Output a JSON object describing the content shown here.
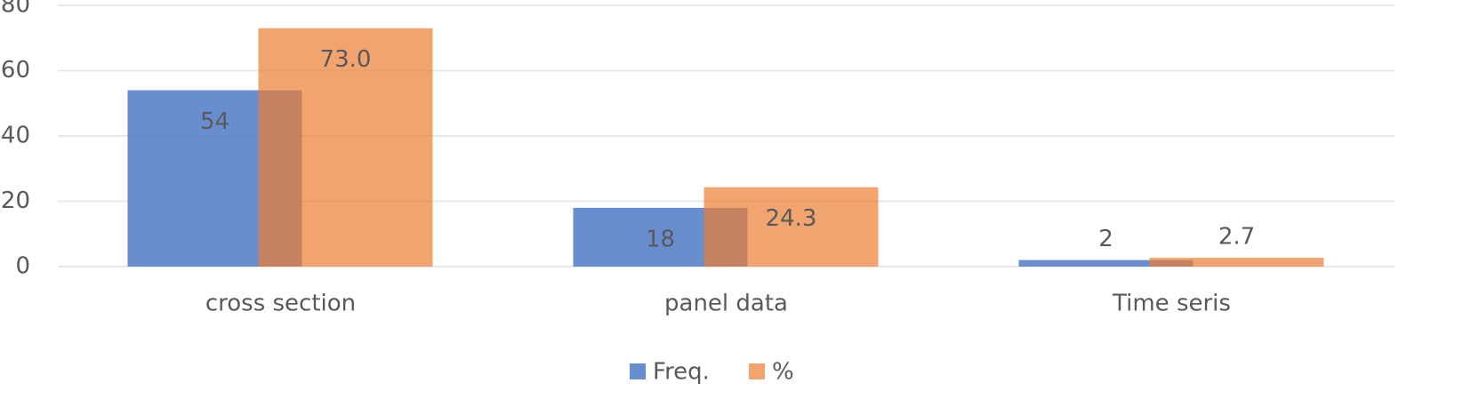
{
  "chart_data": {
    "type": "bar",
    "categories": [
      "cross section",
      "panel data",
      "Time seris"
    ],
    "series": [
      {
        "name": "Freq.",
        "color": "#4472c4",
        "values": [
          54,
          18,
          2
        ]
      },
      {
        "name": "%",
        "color": "#ed7d31",
        "values": [
          73.0,
          24.3,
          2.7
        ],
        "value_labels": [
          "73.0",
          "24.3",
          "2.7"
        ]
      }
    ],
    "ylim": [
      0,
      80
    ],
    "yticks": [
      0,
      20,
      40,
      60,
      80
    ],
    "grid": true,
    "legend": "bottom"
  }
}
